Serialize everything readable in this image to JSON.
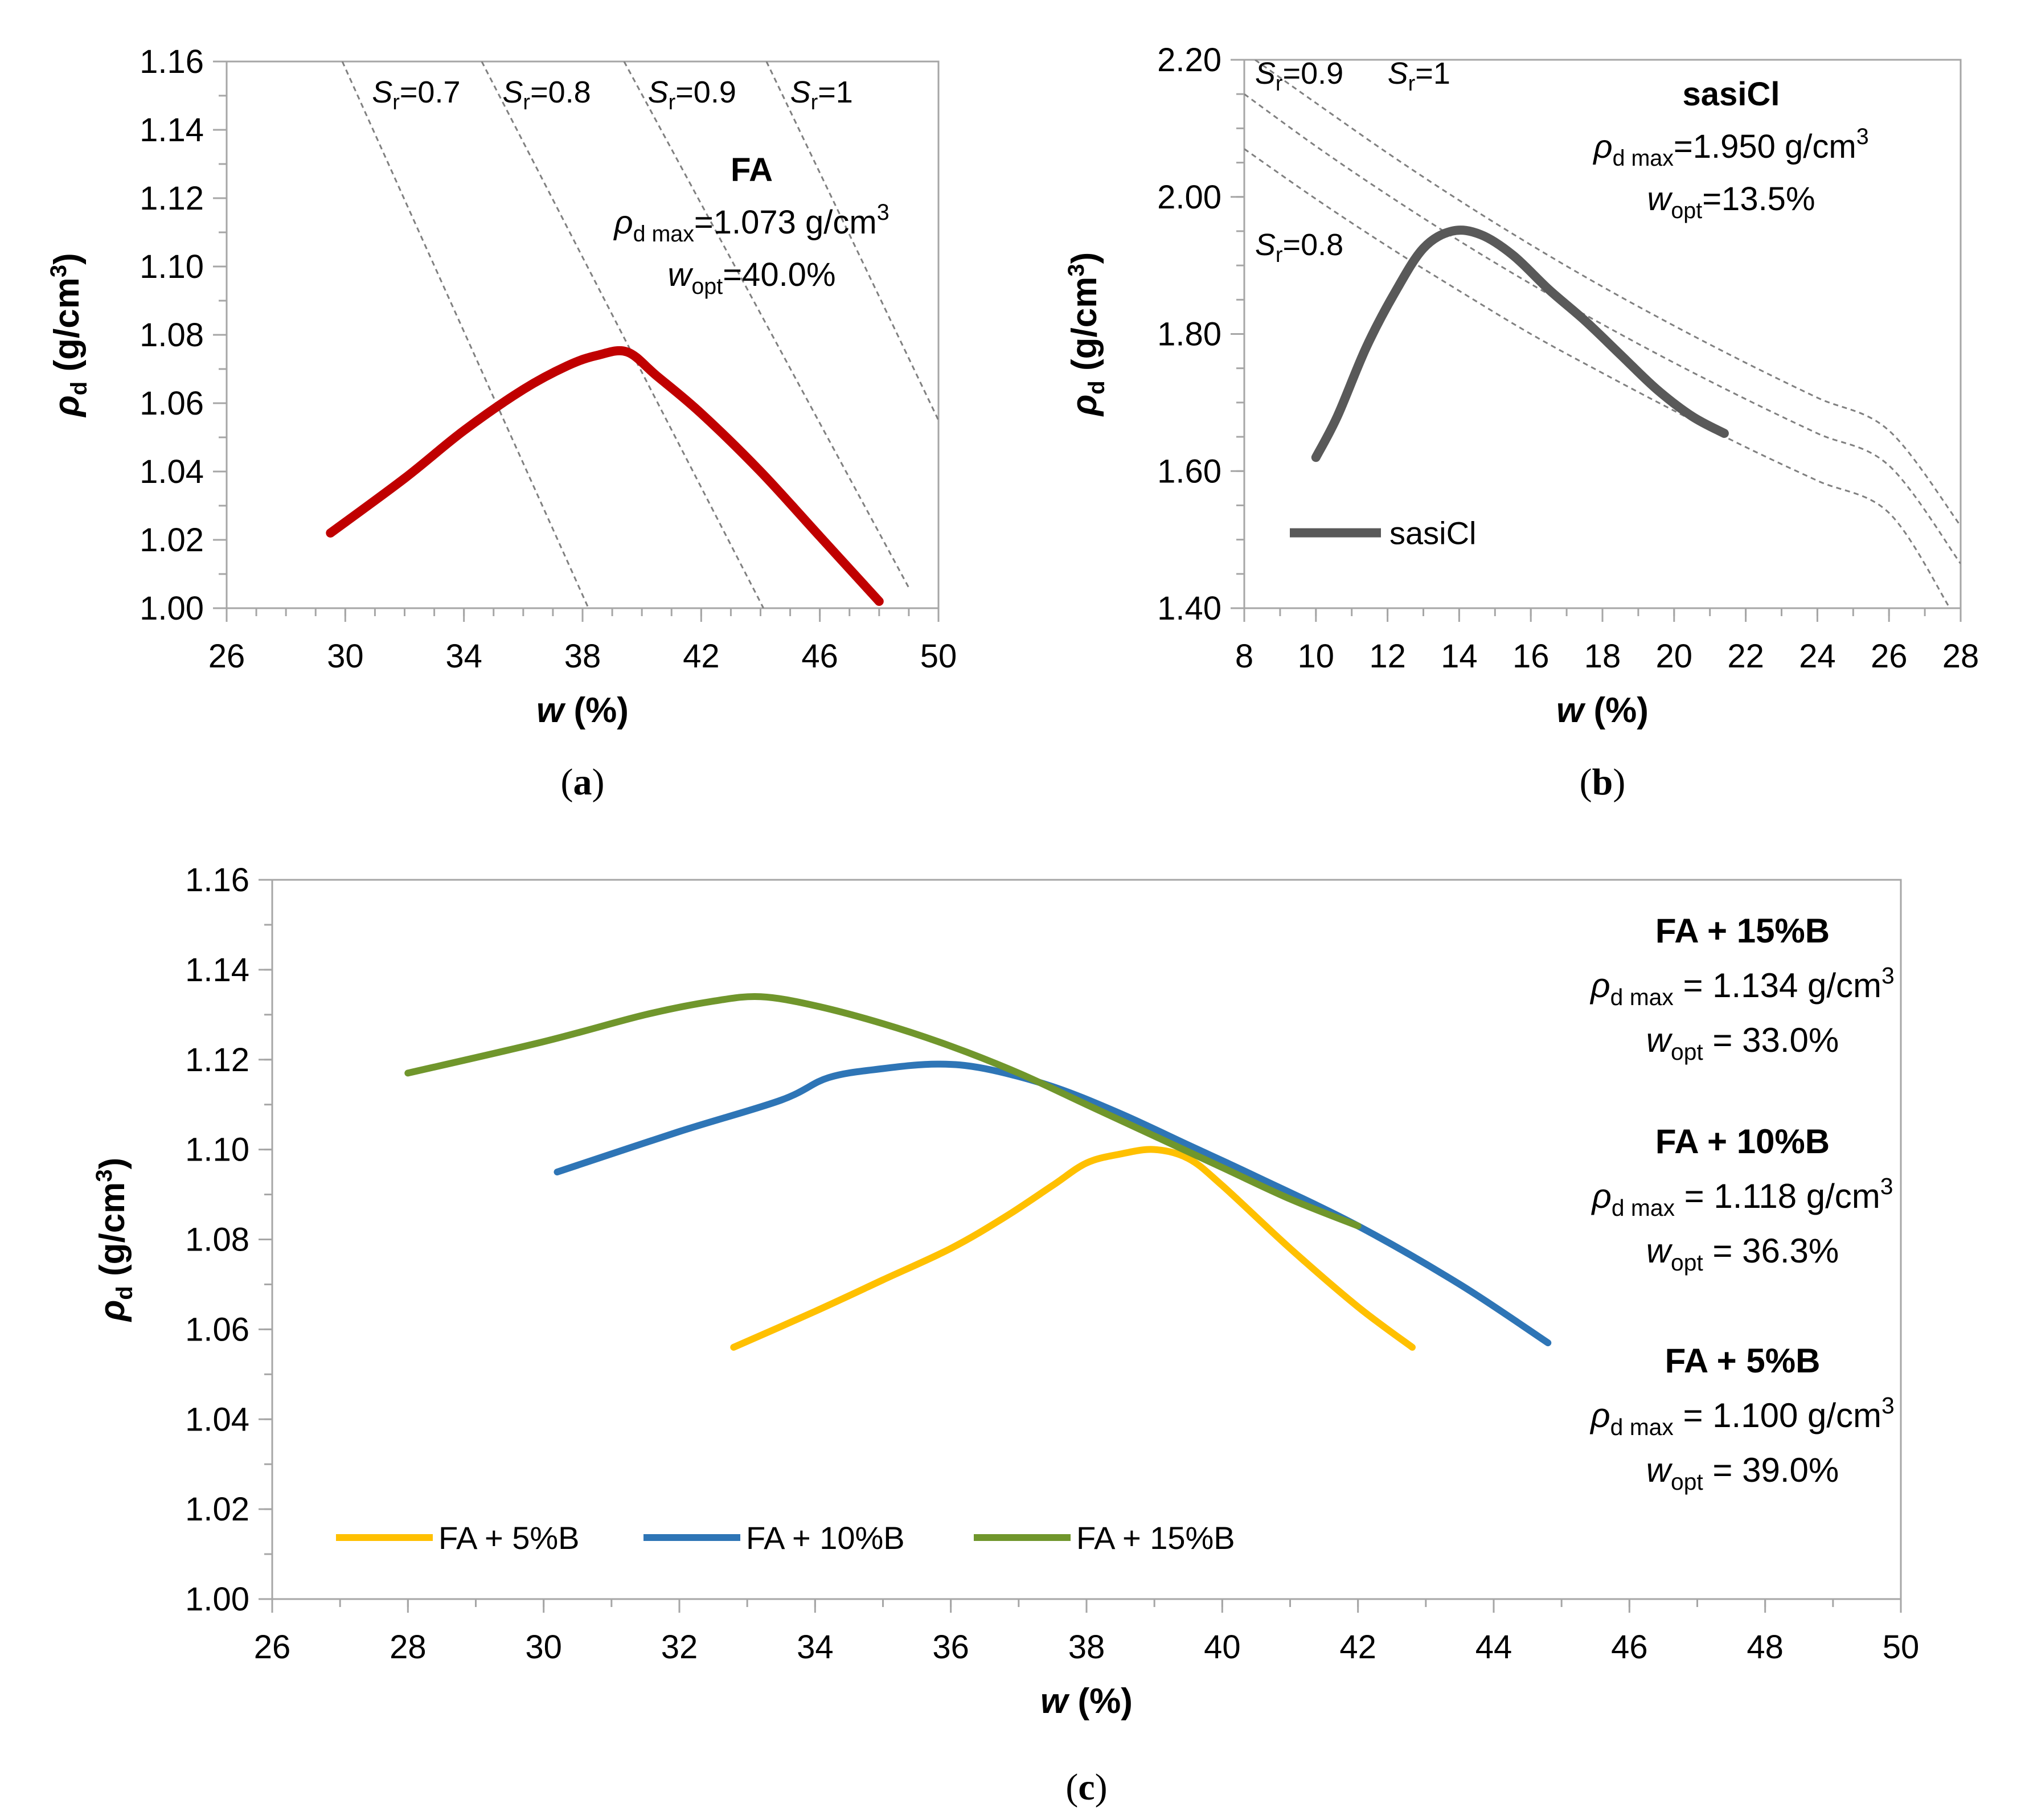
{
  "chart_data": [
    {
      "id": "a",
      "type": "line",
      "panel_label": "(a)",
      "xlabel": "w (%)",
      "ylabel": "ρd (g/cm³)",
      "xlim": [
        26,
        50
      ],
      "ylim": [
        1.0,
        1.16
      ],
      "xticks": [
        26,
        30,
        34,
        38,
        42,
        46,
        50
      ],
      "yticks": [
        1.0,
        1.02,
        1.04,
        1.06,
        1.08,
        1.1,
        1.12,
        1.14,
        1.16
      ],
      "x_minor_step": 1,
      "y_minor_step": 0.01,
      "x_tick_decimals": 0,
      "y_tick_decimals": 2,
      "grid": false,
      "series": [
        {
          "name": "FA",
          "color": "#c00000",
          "width": 16,
          "points": [
            [
              29.5,
              1.022
            ],
            [
              32,
              1.038
            ],
            [
              34,
              1.052
            ],
            [
              36,
              1.064
            ],
            [
              37.5,
              1.071
            ],
            [
              38.5,
              1.074
            ],
            [
              39.5,
              1.075
            ],
            [
              40.5,
              1.068
            ],
            [
              42,
              1.057
            ],
            [
              44,
              1.04
            ],
            [
              46,
              1.021
            ],
            [
              48,
              1.002
            ]
          ]
        }
      ],
      "ref_lines": [
        {
          "label": "Sr=0.7",
          "color": "#808080",
          "points": [
            [
              29.9,
              1.16
            ],
            [
              38.2,
              1.0
            ]
          ]
        },
        {
          "label": "Sr=0.8",
          "color": "#808080",
          "points": [
            [
              34.6,
              1.16
            ],
            [
              44.1,
              1.0
            ]
          ]
        },
        {
          "label": "Sr=0.9",
          "color": "#808080",
          "points": [
            [
              39.4,
              1.16
            ],
            [
              49.0,
              1.006
            ]
          ]
        },
        {
          "label": "Sr=1",
          "color": "#808080",
          "points": [
            [
              44.2,
              1.16
            ],
            [
              50.0,
              1.055
            ]
          ]
        }
      ],
      "sr_labels": [
        {
          "sym": "S",
          "sub": "r",
          "rest": "=0.7",
          "x": 30.9,
          "y": 1.148
        },
        {
          "sym": "S",
          "sub": "r",
          "rest": "=0.8",
          "x": 35.3,
          "y": 1.148
        },
        {
          "sym": "S",
          "sub": "r",
          "rest": "=0.9",
          "x": 40.2,
          "y": 1.148
        },
        {
          "sym": "S",
          "sub": "r",
          "rest": "=1",
          "x": 45.0,
          "y": 1.148
        }
      ],
      "annotation": {
        "title": "FA",
        "rho_label": "ρd max=1.073 g/cm3",
        "rho_value": "=1.073 g/cm",
        "w_label": "wopt=40.0%",
        "w_value": "=40.0%"
      }
    },
    {
      "id": "b",
      "type": "line",
      "panel_label": "(b)",
      "xlabel": "w (%)",
      "ylabel": "ρd (g/cm³)",
      "xlim": [
        8,
        28
      ],
      "ylim": [
        1.4,
        2.2
      ],
      "xticks": [
        8,
        10,
        12,
        14,
        16,
        18,
        20,
        22,
        24,
        26,
        28
      ],
      "yticks": [
        1.4,
        1.6,
        1.8,
        2.0,
        2.2
      ],
      "x_minor_step": 1,
      "y_minor_step": 0.05,
      "x_tick_decimals": 0,
      "y_tick_decimals": 2,
      "grid": false,
      "series": [
        {
          "name": "sasiCl",
          "color": "#595959",
          "width": 16,
          "points": [
            [
              10,
              1.62
            ],
            [
              10.6,
              1.68
            ],
            [
              11.4,
              1.78
            ],
            [
              12.2,
              1.86
            ],
            [
              13.0,
              1.925
            ],
            [
              13.8,
              1.95
            ],
            [
              14.6,
              1.945
            ],
            [
              15.5,
              1.915
            ],
            [
              16.5,
              1.865
            ],
            [
              17.5,
              1.82
            ],
            [
              18.5,
              1.77
            ],
            [
              19.5,
              1.72
            ],
            [
              20.5,
              1.68
            ],
            [
              21.4,
              1.655
            ]
          ]
        }
      ],
      "ref_lines": [
        {
          "label": "Sr=0.8",
          "color": "#808080",
          "points": [
            [
              8,
              2.07
            ],
            [
              10,
              1.997
            ],
            [
              12,
              1.928
            ],
            [
              14,
              1.863
            ],
            [
              16,
              1.8
            ],
            [
              18,
              1.743
            ],
            [
              20,
              1.688
            ],
            [
              22,
              1.635
            ],
            [
              24,
              1.586
            ],
            [
              26,
              1.539
            ],
            [
              27.7,
              1.4
            ]
          ]
        },
        {
          "label": "Sr=0.9",
          "color": "#808080",
          "points": [
            [
              8,
              2.15
            ],
            [
              10,
              2.074
            ],
            [
              12,
              2.003
            ],
            [
              14,
              1.936
            ],
            [
              16,
              1.873
            ],
            [
              18,
              1.814
            ],
            [
              20,
              1.758
            ],
            [
              22,
              1.705
            ],
            [
              24,
              1.655
            ],
            [
              26,
              1.608
            ],
            [
              28,
              1.465
            ]
          ]
        },
        {
          "label": "Sr=1",
          "color": "#808080",
          "points": [
            [
              8.3,
              2.2
            ],
            [
              10,
              2.137
            ],
            [
              12,
              2.064
            ],
            [
              14,
              1.995
            ],
            [
              16,
              1.93
            ],
            [
              18,
              1.869
            ],
            [
              20,
              1.812
            ],
            [
              22,
              1.758
            ],
            [
              24,
              1.707
            ],
            [
              26,
              1.659
            ],
            [
              28,
              1.52
            ]
          ]
        }
      ],
      "sr_labels": [
        {
          "sym": "S",
          "sub": "r",
          "rest": "=0.9",
          "x": 8.3,
          "y": 2.165
        },
        {
          "sym": "S",
          "sub": "r",
          "rest": "=1",
          "x": 12.0,
          "y": 2.165
        },
        {
          "sym": "S",
          "sub": "r",
          "rest": "=0.8",
          "x": 8.3,
          "y": 1.915
        }
      ],
      "legend": {
        "label": "sasiCl",
        "position": "bottom-left"
      },
      "annotation": {
        "title": "sasiCl",
        "rho_label": "ρd max=1.950 g/cm3",
        "rho_value": "=1.950 g/cm",
        "w_label": "wopt=13.5%",
        "w_value": "=13.5%"
      }
    },
    {
      "id": "c",
      "type": "line",
      "panel_label": "(c)",
      "xlabel": "w (%)",
      "ylabel": "ρd (g/cm³)",
      "xlim": [
        26,
        50
      ],
      "ylim": [
        1.0,
        1.16
      ],
      "xticks": [
        26,
        28,
        30,
        32,
        34,
        36,
        38,
        40,
        42,
        44,
        46,
        48,
        50
      ],
      "yticks": [
        1.0,
        1.02,
        1.04,
        1.06,
        1.08,
        1.1,
        1.12,
        1.14,
        1.16
      ],
      "x_minor_step": 1,
      "y_minor_step": 0.01,
      "x_tick_decimals": 0,
      "y_tick_decimals": 2,
      "grid": false,
      "series": [
        {
          "name": "FA + 5%B",
          "color": "#ffc000",
          "width": 12,
          "points": [
            [
              32.8,
              1.056
            ],
            [
              34,
              1.064
            ],
            [
              35,
              1.071
            ],
            [
              36,
              1.078
            ],
            [
              36.8,
              1.085
            ],
            [
              37.5,
              1.092
            ],
            [
              38,
              1.097
            ],
            [
              38.5,
              1.099
            ],
            [
              39,
              1.1
            ],
            [
              39.5,
              1.098
            ],
            [
              40,
              1.092
            ],
            [
              41,
              1.078
            ],
            [
              42,
              1.065
            ],
            [
              42.8,
              1.056
            ]
          ]
        },
        {
          "name": "FA + 10%B",
          "color": "#2e75b6",
          "width": 12,
          "points": [
            [
              30.2,
              1.095
            ],
            [
              32,
              1.104
            ],
            [
              33.5,
              1.111
            ],
            [
              34.2,
              1.116
            ],
            [
              35,
              1.118
            ],
            [
              35.8,
              1.119
            ],
            [
              36.5,
              1.118
            ],
            [
              37.5,
              1.114
            ],
            [
              38.5,
              1.108
            ],
            [
              39.5,
              1.101
            ],
            [
              40.5,
              1.094
            ],
            [
              42,
              1.083
            ],
            [
              43.5,
              1.07
            ],
            [
              44.8,
              1.057
            ]
          ]
        },
        {
          "name": "FA + 15%B",
          "color": "#70962c",
          "width": 12,
          "points": [
            [
              28,
              1.117
            ],
            [
              30,
              1.124
            ],
            [
              31.5,
              1.13
            ],
            [
              32.5,
              1.133
            ],
            [
              33.2,
              1.134
            ],
            [
              34,
              1.132
            ],
            [
              35,
              1.128
            ],
            [
              36,
              1.123
            ],
            [
              37,
              1.117
            ],
            [
              38,
              1.11
            ],
            [
              39,
              1.103
            ],
            [
              40,
              1.096
            ],
            [
              41,
              1.089
            ],
            [
              42,
              1.083
            ]
          ]
        }
      ],
      "legend": {
        "position": "bottom-left"
      },
      "annotations": [
        {
          "title": "FA + 15%B",
          "rho_value": " = 1.134 g/cm",
          "w_value": " = 33.0%"
        },
        {
          "title": "FA + 10%B",
          "rho_value": " = 1.118 g/cm",
          "w_value": " = 36.3%"
        },
        {
          "title": "FA + 5%B",
          "rho_value": " = 1.100 g/cm",
          "w_value": " = 39.0%"
        }
      ]
    }
  ]
}
